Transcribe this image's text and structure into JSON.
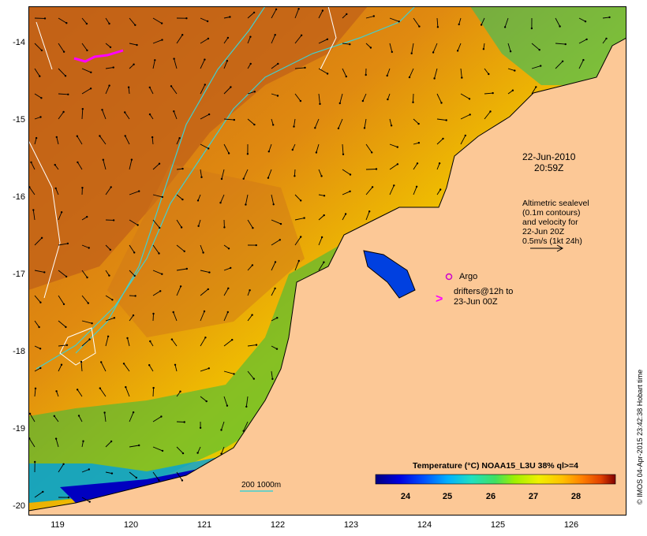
{
  "map": {
    "y_ticks": [
      "-14",
      "-15",
      "-16",
      "-17",
      "-18",
      "-19",
      "-20"
    ],
    "x_ticks": [
      "119",
      "120",
      "121",
      "122",
      "123",
      "124",
      "125",
      "126"
    ],
    "date": "22-Jun-2010",
    "time": "20:59Z",
    "altimetry_lines": [
      "Altimetric sealevel",
      "(0.1m contours)",
      "and velocity for",
      "22-Jun 20Z",
      "0.5m/s (1kt 24h)"
    ],
    "argo_label": "Argo",
    "drifter_lines": [
      "drifters@12h to",
      "23-Jun 00Z"
    ],
    "isobath_label": "200  1000m",
    "colorbar_title": "Temperature (°C) NOAA15_L3U 38% ql>=4",
    "colorbar_ticks": [
      "24",
      "25",
      "26",
      "27",
      "28"
    ],
    "credit": "© IMOS 04-Apr-2015 23:42:38 Hobart time",
    "colors": {
      "land": "#fcc896",
      "isobath": "#40d0d0",
      "drifter": "#ff00ff",
      "argo": "#cc00cc",
      "colormap": [
        "#00007f",
        "#0000e0",
        "#0050ff",
        "#00b0ff",
        "#20e0c0",
        "#40e060",
        "#a0f000",
        "#f0f000",
        "#ffc000",
        "#ff8000",
        "#e04000",
        "#800000"
      ]
    }
  }
}
